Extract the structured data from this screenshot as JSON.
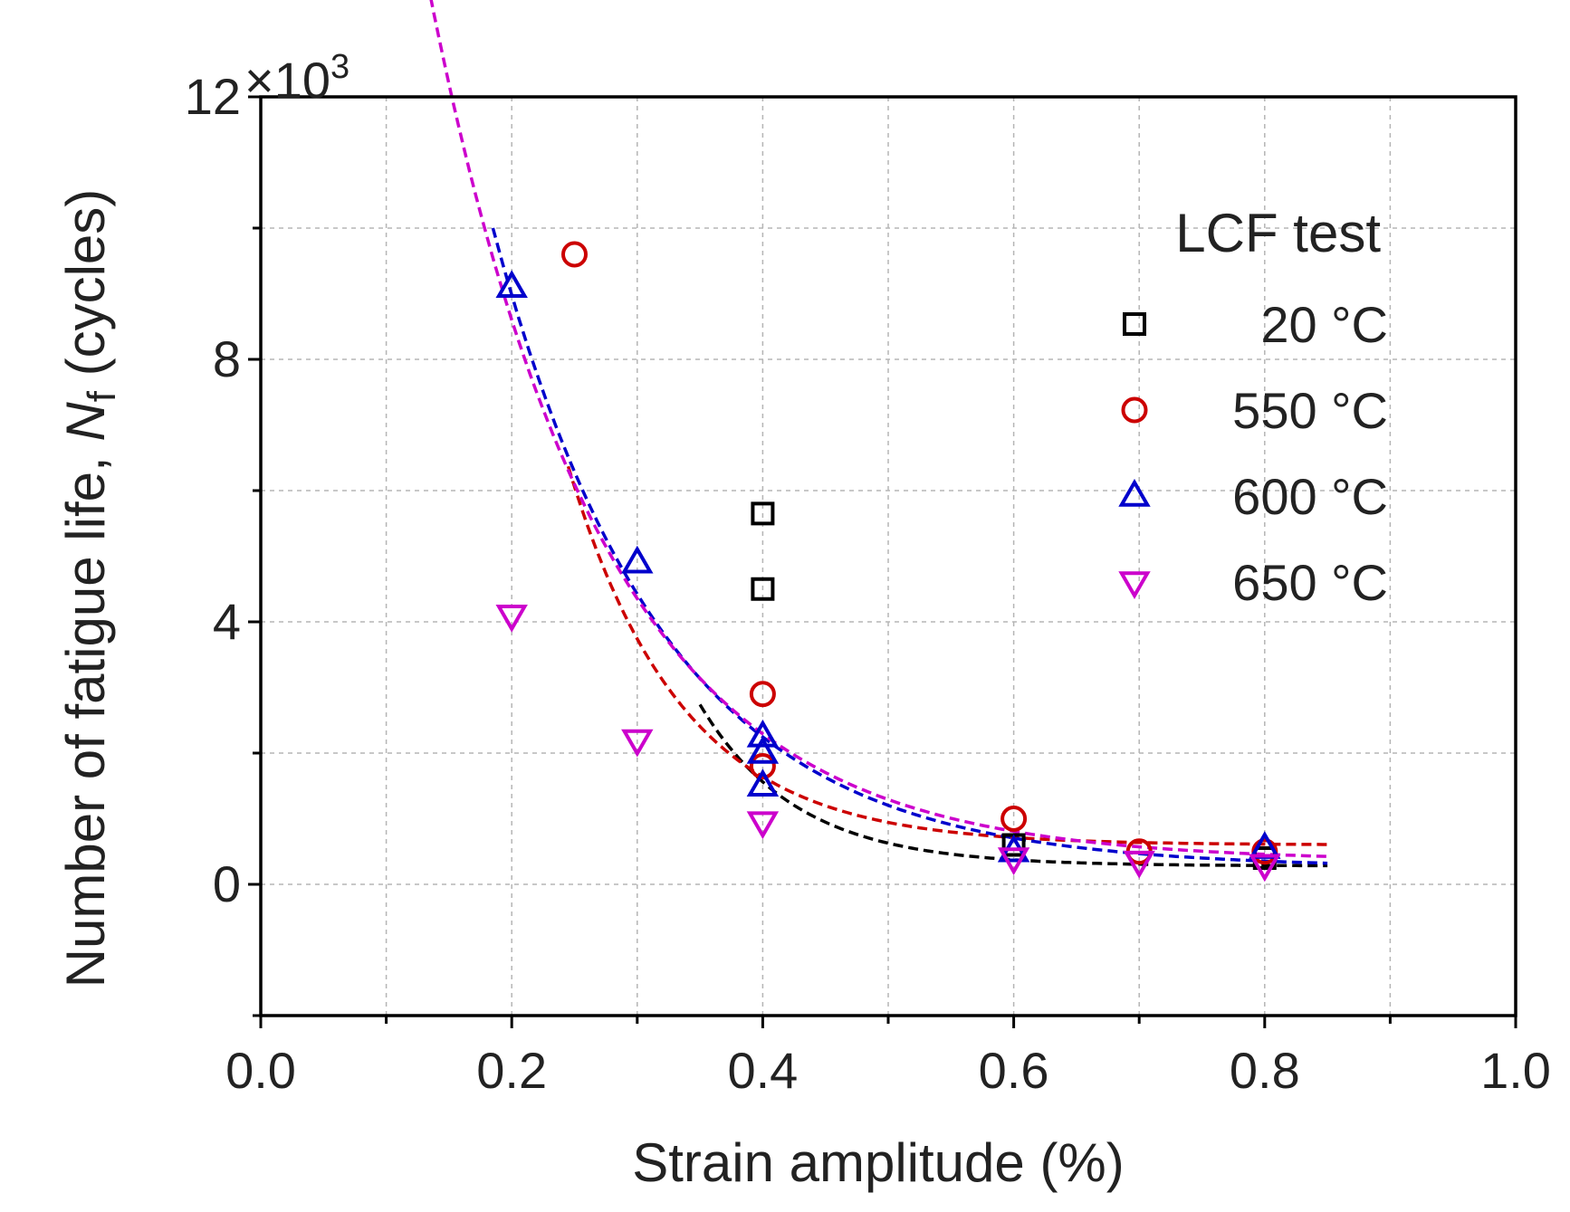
{
  "chart_data": {
    "type": "scatter",
    "title": "",
    "xlabel": "Strain amplitude (%)",
    "ylabel_prefix": "Number of fatigue life, ",
    "ylabel_symbol": "N",
    "ylabel_subscript": "f",
    "ylabel_suffix": " (cycles)",
    "y_multiplier_base": "×10",
    "y_multiplier_exp": "3",
    "xlim": [
      0.0,
      1.0
    ],
    "ylim": [
      -2,
      12
    ],
    "x_major_ticks": [
      0.0,
      0.2,
      0.4,
      0.6,
      0.8,
      1.0
    ],
    "x_tick_labels": [
      "0.0",
      "0.2",
      "0.4",
      "0.6",
      "0.8",
      "1.0"
    ],
    "y_major_ticks": [
      0,
      4,
      8,
      12
    ],
    "y_tick_labels": [
      "0",
      "4",
      "8",
      "12"
    ],
    "x_grid": [
      0.0,
      0.1,
      0.2,
      0.3,
      0.4,
      0.5,
      0.6,
      0.7,
      0.8,
      0.9,
      1.0
    ],
    "y_grid": [
      -2,
      0,
      2,
      4,
      6,
      8,
      10,
      12
    ],
    "grid": true,
    "legend": {
      "title": "LCF test",
      "placement": "top-right"
    },
    "series": [
      {
        "name": "20 °C",
        "marker": "square",
        "color": "#000000",
        "points": [
          [
            0.4,
            5.65
          ],
          [
            0.4,
            4.5
          ],
          [
            0.6,
            0.6
          ],
          [
            0.8,
            0.4
          ]
        ],
        "fit": {
          "a": 17.42,
          "b": 13.05,
          "c": 0.28,
          "x_from": 0.35,
          "x_to": 0.85
        }
      },
      {
        "name": "550 °C",
        "marker": "circle",
        "color": "#cc0000",
        "points": [
          [
            0.25,
            9.6
          ],
          [
            0.4,
            2.9
          ],
          [
            0.4,
            1.8
          ],
          [
            0.6,
            1.0
          ],
          [
            0.7,
            0.5
          ],
          [
            0.8,
            0.5
          ]
        ],
        "fit": {
          "a": 9.49,
          "b": 11.06,
          "c": 0.6,
          "x_from": 0.245,
          "x_to": 0.85
        }
      },
      {
        "name": "600 °C",
        "marker": "triangle-up",
        "color": "#0000cc",
        "points": [
          [
            0.2,
            9.1
          ],
          [
            0.3,
            4.9
          ],
          [
            0.4,
            2.25
          ],
          [
            0.4,
            2.0
          ],
          [
            0.4,
            1.5
          ],
          [
            0.6,
            0.5
          ],
          [
            0.8,
            0.55
          ]
        ],
        "fit": {
          "a": 8.73,
          "b": 7.38,
          "c": 0.25,
          "x_from": 0.185,
          "x_to": 0.85
        }
      },
      {
        "name": "650 °C",
        "marker": "triangle-down",
        "color": "#cc00cc",
        "points": [
          [
            0.2,
            4.1
          ],
          [
            0.3,
            2.2
          ],
          [
            0.4,
            0.95
          ],
          [
            0.6,
            0.4
          ],
          [
            0.7,
            0.35
          ],
          [
            0.8,
            0.3
          ]
        ],
        "fit": {
          "a": 8.25,
          "b": 7.23,
          "c": 0.35,
          "x_from": 0.08,
          "x_to": 0.85
        }
      }
    ]
  }
}
